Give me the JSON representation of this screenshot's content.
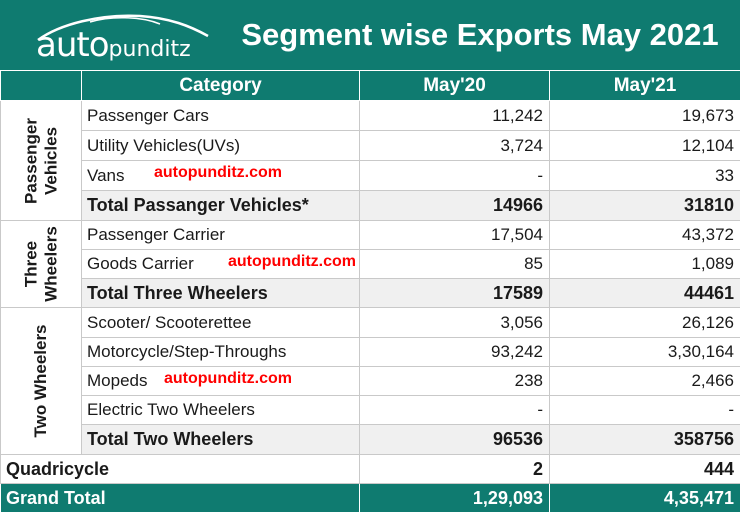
{
  "brand": {
    "logo_auto": "auto",
    "logo_punditz": "punditz"
  },
  "title": "Segment wise Exports May 2021",
  "columns": {
    "category": "Category",
    "may20": "May'20",
    "may21": "May'21"
  },
  "watermark": "autopunditz.com",
  "groups": {
    "pv": {
      "label_line1": "Passenger",
      "label_line2": "Vehicles",
      "rows": [
        {
          "name": "Passenger Cars",
          "may20": "11,242",
          "may21": "19,673"
        },
        {
          "name": "Utility Vehicles(UVs)",
          "may20": "3,724",
          "may21": "12,104"
        },
        {
          "name": "Vans",
          "may20": "-",
          "may21": "33"
        }
      ],
      "total": {
        "name": "Total Passanger Vehicles*",
        "may20": "14966",
        "may21": "31810"
      }
    },
    "tw3": {
      "label_line1": "Three",
      "label_line2": "Wheelers",
      "rows": [
        {
          "name": "Passenger Carrier",
          "may20": "17,504",
          "may21": "43,372"
        },
        {
          "name": "Goods Carrier",
          "may20": "85",
          "may21": "1,089"
        }
      ],
      "total": {
        "name": "Total Three Wheelers",
        "may20": "17589",
        "may21": "44461"
      }
    },
    "tw2": {
      "label_line1": "Two Wheelers",
      "rows": [
        {
          "name": "Scooter/ Scooterettee",
          "may20": "3,056",
          "may21": "26,126"
        },
        {
          "name": "Motorcycle/Step-Throughs",
          "may20": "93,242",
          "may21": "3,30,164"
        },
        {
          "name": "Mopeds",
          "may20": "238",
          "may21": "2,466"
        },
        {
          "name": "Electric Two Wheelers",
          "may20": "-",
          "may21": "-"
        }
      ],
      "total": {
        "name": "Total  Two Wheelers",
        "may20": "96536",
        "may21": "358756"
      }
    }
  },
  "quadricycle": {
    "name": "Quadricycle",
    "may20": "2",
    "may21": "444"
  },
  "grand_total": {
    "name": "Grand Total",
    "may20": "1,29,093",
    "may21": "4,35,471"
  },
  "colors": {
    "header_bg": "#0f7b70",
    "watermark": "#ff0000",
    "total_row_bg": "#f0f0f0"
  }
}
